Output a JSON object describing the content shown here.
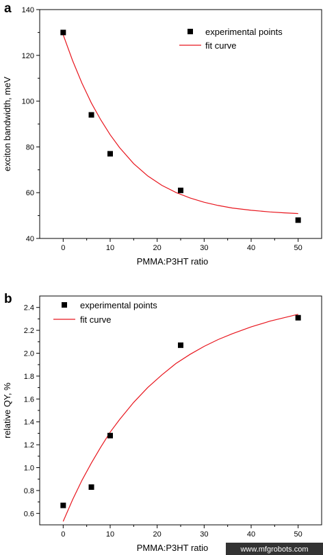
{
  "chart_data": [
    {
      "panel_label": "a",
      "type": "scatter",
      "xlabel": "PMMA:P3HT ratio",
      "ylabel": "exciton bandwidth, meV",
      "xlim": [
        -5,
        55
      ],
      "ylim": [
        40,
        140
      ],
      "xticks": [
        0,
        10,
        20,
        30,
        40,
        50
      ],
      "yticks": [
        40,
        60,
        80,
        100,
        120,
        140
      ],
      "grid": false,
      "legend_position": "top-right",
      "series": [
        {
          "name": "experimental points",
          "kind": "points",
          "color": "#000000",
          "x": [
            0,
            6,
            10,
            25,
            50
          ],
          "y": [
            130,
            94,
            77,
            61,
            48
          ]
        },
        {
          "name": "fit curve",
          "kind": "line",
          "color": "#e8141c",
          "x": [
            0,
            2,
            4,
            6,
            8,
            10,
            12,
            15,
            18,
            21,
            24,
            27,
            30,
            33,
            36,
            40,
            44,
            47,
            50
          ],
          "y": [
            129.0,
            117.7,
            107.8,
            99.2,
            91.8,
            85.3,
            79.7,
            72.7,
            67.3,
            63.2,
            60.1,
            57.7,
            55.8,
            54.4,
            53.3,
            52.3,
            51.6,
            51.2,
            50.9
          ]
        }
      ]
    },
    {
      "panel_label": "b",
      "type": "scatter",
      "xlabel": "PMMA:P3HT ratio",
      "ylabel": "relative QY, %",
      "xlim": [
        -5,
        55
      ],
      "ylim": [
        0.5,
        2.5
      ],
      "xticks": [
        0,
        10,
        20,
        30,
        40,
        50
      ],
      "yticks": [
        0.6,
        0.8,
        1.0,
        1.2,
        1.4,
        1.6,
        1.8,
        2.0,
        2.2,
        2.4
      ],
      "ytick_labels": [
        "0.6",
        "0.8",
        "1.0",
        "1.2",
        "1.4",
        "1.6",
        "1.8",
        "2.0",
        "2.2",
        "2.4"
      ],
      "grid": false,
      "legend_position": "top-left",
      "series": [
        {
          "name": "experimental points",
          "kind": "points",
          "color": "#000000",
          "x": [
            0,
            6,
            10,
            25,
            50
          ],
          "y": [
            0.67,
            0.83,
            1.28,
            2.07,
            2.31
          ]
        },
        {
          "name": "fit curve",
          "kind": "line",
          "color": "#e8141c",
          "x": [
            0,
            2,
            4,
            6,
            8,
            10,
            12,
            15,
            18,
            21,
            24,
            27,
            30,
            33,
            36,
            40,
            44,
            47,
            50
          ],
          "y": [
            0.53,
            0.72,
            0.89,
            1.04,
            1.18,
            1.31,
            1.42,
            1.57,
            1.7,
            1.81,
            1.91,
            1.99,
            2.06,
            2.12,
            2.17,
            2.23,
            2.28,
            2.31,
            2.34
          ]
        }
      ]
    }
  ],
  "watermark": "www.mfgrobots.com"
}
